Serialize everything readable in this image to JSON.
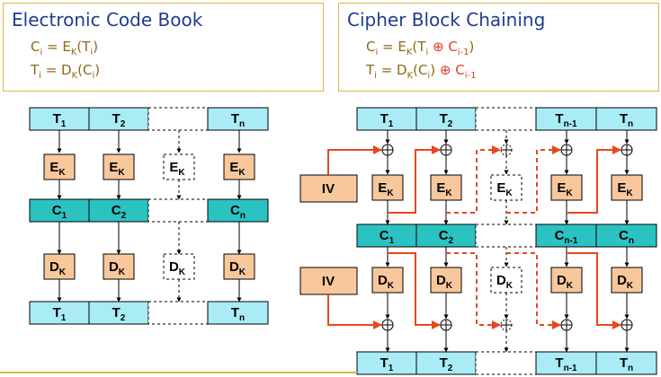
{
  "ecb": {
    "title": "Electronic Code Book",
    "enc": {
      "lhs": "C",
      "lhs_sub": "i",
      "eq": " = E",
      "key_sub": "K",
      "open": "(T",
      "t_sub": "i",
      "close": ")"
    },
    "dec": {
      "lhs": "T",
      "lhs_sub": "i",
      "eq": " = D",
      "key_sub": "K",
      "open": "(C",
      "t_sub": "i",
      "close": ")"
    }
  },
  "cbc": {
    "title": "Cipher Block Chaining",
    "enc": {
      "lhs": "C",
      "lhs_sub": "i",
      "eq": " = E",
      "key_sub": "K",
      "open": "(T",
      "t_sub": "i",
      "xor": " ⊕ C",
      "x_sub": "i-1",
      "close": ")"
    },
    "dec": {
      "lhs": "T",
      "lhs_sub": "i",
      "eq": " = D",
      "key_sub": "K",
      "open": "(C",
      "t_sub": "i",
      "close": ")",
      "xor": " ⊕ C",
      "x_sub": "i-1"
    }
  },
  "labels": {
    "T": "T",
    "C": "C",
    "E": "E",
    "D": "D",
    "K": "K",
    "IV": "IV",
    "s1": "1",
    "s2": "2",
    "sn": "n",
    "sn1": "n-1"
  },
  "colors": {
    "text_block": "#a9ecf6",
    "cipher_block": "#2bc2c2",
    "func_box": "#f8c79c",
    "arrow_red": "#e8461d",
    "header_border": "#d7b84a",
    "title_blue": "#1f3d8f",
    "eq_brown": "#8a6a14",
    "eq_red": "#e03b2d"
  }
}
